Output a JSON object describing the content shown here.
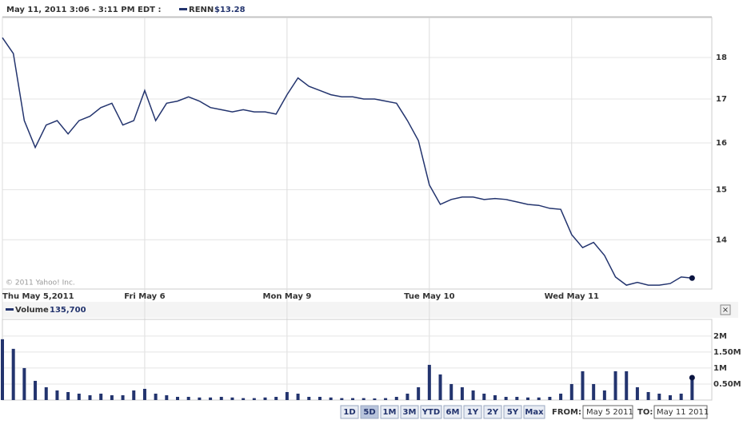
{
  "header": {
    "time": "May 11, 2011 3:06 - 3:11 PM EDT :",
    "copyright": "© 2011 Yahoo! Inc."
  },
  "chart_data": [
    {
      "type": "line",
      "log_scale": true,
      "grid": true,
      "series": [
        {
          "name": "RENN",
          "legend_value": "$13.28",
          "color": "#23346e",
          "values": [
            18.5,
            18.1,
            16.5,
            15.9,
            16.4,
            16.5,
            16.2,
            16.5,
            16.6,
            16.8,
            16.9,
            16.4,
            16.5,
            17.2,
            16.5,
            16.9,
            16.95,
            17.05,
            16.95,
            16.8,
            16.75,
            16.7,
            16.75,
            16.7,
            16.7,
            16.65,
            17.1,
            17.5,
            17.3,
            17.2,
            17.1,
            17.05,
            17.05,
            17.0,
            17.0,
            16.95,
            16.9,
            16.5,
            16.05,
            15.1,
            14.7,
            14.8,
            14.85,
            14.85,
            14.8,
            14.82,
            14.8,
            14.75,
            14.7,
            14.68,
            14.62,
            14.6,
            14.1,
            13.85,
            13.95,
            13.7,
            13.3,
            13.15,
            13.2,
            13.15,
            13.15,
            13.18,
            13.3,
            13.28
          ]
        }
      ],
      "xlim": [
        0,
        64.8
      ],
      "xticks": [
        {
          "value": 0,
          "label": "Thu May 5,2011"
        },
        {
          "value": 13,
          "label": "Fri May 6"
        },
        {
          "value": 26,
          "label": "Mon May 9"
        },
        {
          "value": 39,
          "label": "Tue May 10"
        },
        {
          "value": 52,
          "label": "Wed May 11"
        }
      ],
      "ylim": [
        13.08,
        19.02
      ],
      "yticks": [
        14,
        15,
        16,
        17,
        18
      ]
    },
    {
      "type": "bar",
      "grid": true,
      "series": [
        {
          "name": "Volume",
          "legend_value": "135,700",
          "color": "#23346e",
          "values": [
            1900000,
            1600000,
            1000000,
            600000,
            400000,
            300000,
            250000,
            200000,
            150000,
            200000,
            150000,
            150000,
            300000,
            350000,
            200000,
            150000,
            100000,
            100000,
            80000,
            80000,
            100000,
            80000,
            60000,
            60000,
            80000,
            100000,
            250000,
            200000,
            100000,
            100000,
            80000,
            60000,
            60000,
            60000,
            50000,
            60000,
            100000,
            200000,
            400000,
            1100000,
            800000,
            500000,
            400000,
            300000,
            200000,
            150000,
            100000,
            100000,
            80000,
            80000,
            100000,
            200000,
            500000,
            900000,
            500000,
            300000,
            900000,
            900000,
            400000,
            250000,
            200000,
            150000,
            200000,
            700000
          ]
        }
      ],
      "xlim": [
        0,
        64.8
      ],
      "ylim": [
        0,
        2520000
      ],
      "yticks": [
        {
          "value": 500000,
          "label": "0.50M"
        },
        {
          "value": 1000000,
          "label": "1M"
        },
        {
          "value": 1500000,
          "label": "1.50M"
        },
        {
          "value": 2000000,
          "label": "2M"
        }
      ]
    }
  ],
  "controls": {
    "ranges": [
      "1D",
      "5D",
      "1M",
      "3M",
      "YTD",
      "6M",
      "1Y",
      "2Y",
      "5Y",
      "Max"
    ],
    "active_range": 1,
    "from_label": "FROM:",
    "from": "May 5 2011",
    "to_label": "TO:",
    "to": "May 11 2011"
  }
}
